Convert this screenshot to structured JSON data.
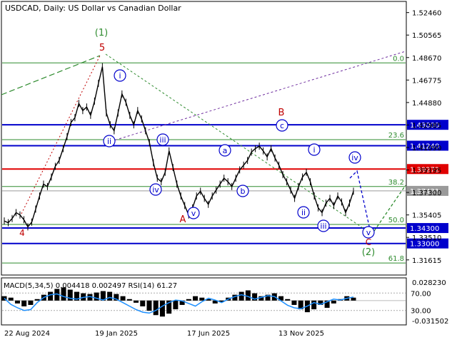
{
  "chart_data": {
    "type": "line",
    "title": "USDCAD, Daily:  US Dollar vs Canadian Dollar",
    "main_ylim": [
      1.3046,
      1.5328
    ],
    "y_ticks": [
      "1.52460",
      "1.50565",
      "1.48670",
      "1.46775",
      "1.44880",
      "1.42985",
      "1.41090",
      "1.39195",
      "1.37300",
      "1.35405",
      "1.33510",
      "1.31615"
    ],
    "price_series_close": [
      1.349,
      1.3475,
      1.351,
      1.356,
      1.354,
      1.35,
      1.344,
      1.348,
      1.359,
      1.37,
      1.38,
      1.378,
      1.386,
      1.395,
      1.4,
      1.41,
      1.42,
      1.432,
      1.436,
      1.448,
      1.442,
      1.445,
      1.438,
      1.45,
      1.465,
      1.479,
      1.44,
      1.43,
      1.425,
      1.44,
      1.456,
      1.449,
      1.438,
      1.43,
      1.442,
      1.435,
      1.425,
      1.415,
      1.398,
      1.385,
      1.382,
      1.39,
      1.408,
      1.394,
      1.38,
      1.37,
      1.362,
      1.354,
      1.36,
      1.37,
      1.374,
      1.368,
      1.363,
      1.37,
      1.375,
      1.38,
      1.385,
      1.382,
      1.378,
      1.385,
      1.392,
      1.396,
      1.4,
      1.407,
      1.41,
      1.412,
      1.408,
      1.403,
      1.41,
      1.402,
      1.396,
      1.388,
      1.382,
      1.375,
      1.368,
      1.378,
      1.386,
      1.39,
      1.382,
      1.37,
      1.36,
      1.356,
      1.364,
      1.368,
      1.362,
      1.37,
      1.365,
      1.356,
      1.364,
      1.374
    ],
    "x_ticks": [
      "22 Aug 2024",
      "19 Jan 2025",
      "17 Jun 2025",
      "13 Nov 2025"
    ],
    "horizontal_levels": [
      {
        "label": "1.43000",
        "value": 1.43,
        "color": "#0000cc"
      },
      {
        "label": "1.41240",
        "value": 1.4124,
        "color": "#0000cc"
      },
      {
        "label": "1.39272",
        "value": 1.39272,
        "color": "#e00000"
      },
      {
        "label": "1.37431",
        "value": 1.37431,
        "color": "#9a9a9a"
      },
      {
        "label": "1.34300",
        "value": 1.343,
        "color": "#0000cc"
      },
      {
        "label": "1.33000",
        "value": 1.33,
        "color": "#0000cc"
      }
    ],
    "fib_levels": [
      {
        "label": "0.0",
        "value": 1.4822
      },
      {
        "label": "23.6",
        "value": 1.4175
      },
      {
        "label": "38.2",
        "value": 1.378
      },
      {
        "label": "50.0",
        "value": 1.346
      },
      {
        "label": "61.8",
        "value": 1.3135
      }
    ],
    "wave_labels": {
      "big": [
        "(1)",
        "(2)"
      ],
      "abc": [
        "A",
        "B",
        "C"
      ],
      "impulse": [
        "4",
        "5"
      ],
      "circled_minor": [
        "i",
        "ii",
        "iii",
        "iv",
        "v",
        "a",
        "b",
        "c",
        "i",
        "ii",
        "iii",
        "iv",
        "v"
      ]
    },
    "macd": {
      "label": "MACD(5,34,5) 0.004418 0.002497 RSI(14) 61.27",
      "ylim": [
        -0.031502,
        0.02823
      ],
      "right_ticks": [
        "0.028230",
        "-0.031502"
      ],
      "rsi_levels": [
        "70.00",
        "30.00"
      ],
      "histogram": [
        0.006,
        0.004,
        -0.004,
        -0.008,
        -0.006,
        0.002,
        0.008,
        0.012,
        0.016,
        0.018,
        0.015,
        0.012,
        0.01,
        0.009,
        0.011,
        0.013,
        0.012,
        0.009,
        0.006,
        0.002,
        -0.003,
        -0.008,
        -0.014,
        -0.02,
        -0.022,
        -0.018,
        -0.012,
        -0.006,
        0.002,
        0.006,
        0.004,
        0.002,
        -0.004,
        -0.002,
        0.004,
        0.008,
        0.012,
        0.014,
        0.01,
        0.006,
        0.008,
        0.01,
        0.006,
        0.002,
        -0.006,
        -0.012,
        -0.016,
        -0.012,
        -0.006,
        -0.01,
        -0.004,
        0.002,
        0.006,
        0.004
      ],
      "rsi": [
        58,
        44,
        36,
        30,
        32,
        48,
        60,
        66,
        68,
        62,
        58,
        56,
        60,
        62,
        58,
        54,
        60,
        56,
        48,
        40,
        32,
        26,
        24,
        30,
        40,
        48,
        54,
        52,
        46,
        40,
        50,
        58,
        54,
        48,
        56,
        62,
        66,
        62,
        56,
        60,
        64,
        62,
        52,
        42,
        36,
        34,
        40,
        48,
        44,
        50,
        56,
        54,
        58,
        61
      ]
    }
  }
}
